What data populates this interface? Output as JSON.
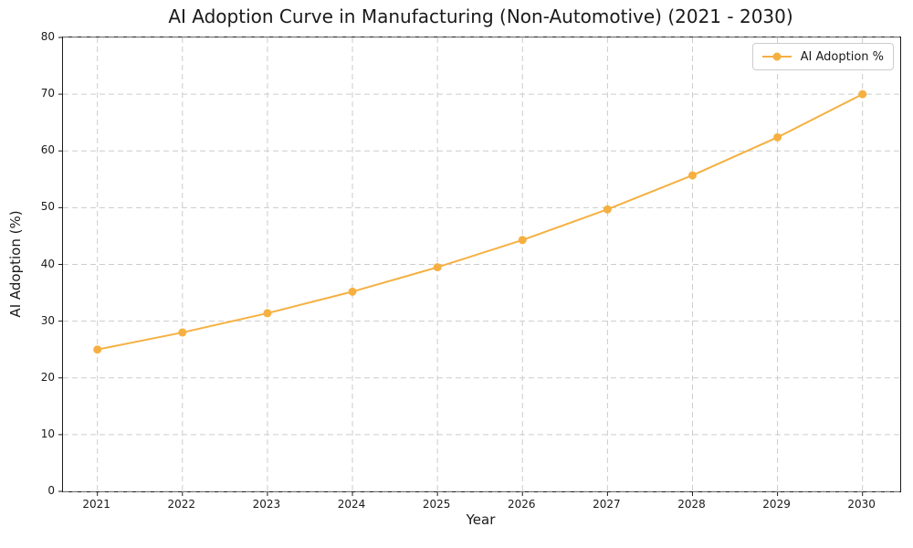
{
  "chart_data": {
    "type": "line",
    "title": "AI Adoption Curve in Manufacturing (Non-Automotive) (2021 - 2030)",
    "xlabel": "Year",
    "ylabel": "AI Adoption (%)",
    "x": [
      "2021",
      "2022",
      "2023",
      "2024",
      "2025",
      "2026",
      "2027",
      "2028",
      "2029",
      "2030"
    ],
    "series": [
      {
        "name": "AI Adoption %",
        "values": [
          25.0,
          28.0,
          31.4,
          35.2,
          39.5,
          44.3,
          49.7,
          55.7,
          62.4,
          70.0
        ],
        "color": "#F5B041",
        "marker": "circle"
      }
    ],
    "ylim": [
      0,
      80
    ],
    "yticks": [
      0,
      10,
      20,
      30,
      40,
      50,
      60,
      70,
      80
    ],
    "grid": true,
    "grid_style": "dashed",
    "legend_position": "upper right"
  },
  "colors": {
    "line": "#F5B041",
    "grid": "#cccccc",
    "spine": "#1a1a1a",
    "text": "#1a1a1a",
    "background": "#ffffff"
  }
}
